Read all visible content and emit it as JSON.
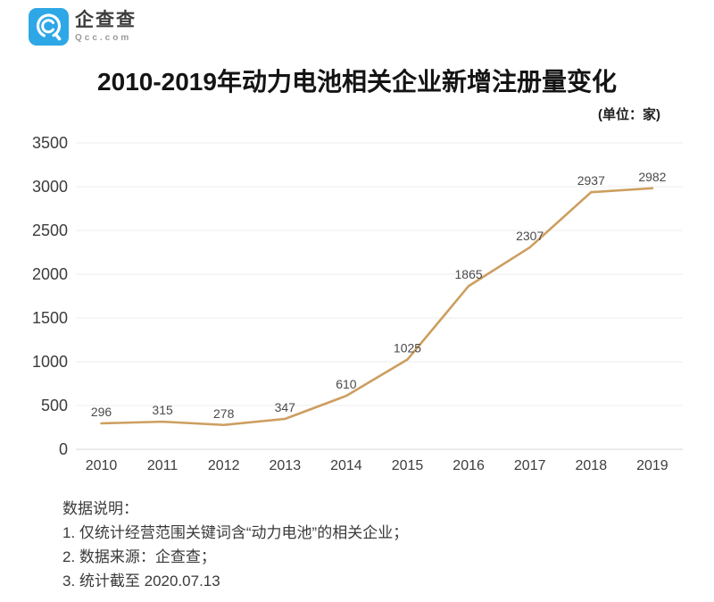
{
  "brand": {
    "name": "企查查",
    "domain": "Qcc.com",
    "logo_color": "#2EA7E6"
  },
  "title": "2010-2019年动力电池相关企业新增注册量变化",
  "unit_label": "(单位：家)",
  "chart_data": {
    "type": "line",
    "categories": [
      "2010",
      "2011",
      "2012",
      "2013",
      "2014",
      "2015",
      "2016",
      "2017",
      "2018",
      "2019"
    ],
    "values": [
      296,
      315,
      278,
      347,
      610,
      1025,
      1865,
      2307,
      2937,
      2982
    ],
    "title": "2010-2019年动力电池相关企业新增注册量变化",
    "xlabel": "",
    "ylabel": "",
    "unit": "家",
    "ylim": [
      0,
      3500
    ],
    "ytick_step": 500,
    "grid": true,
    "legend_position": "none",
    "line_color": "#CD9E5F",
    "grid_color": "#ececec",
    "axis_line_color": "#d8d8d8",
    "tick_label_color": "#3c3c3c",
    "data_label_color": "#4a4a4a"
  },
  "notes": {
    "heading": "数据说明：",
    "items": [
      "1. 仅统计经营范围关键词含“动力电池”的相关企业；",
      "2. 数据来源：企查查；",
      "3. 统计截至 2020.07.13"
    ]
  }
}
